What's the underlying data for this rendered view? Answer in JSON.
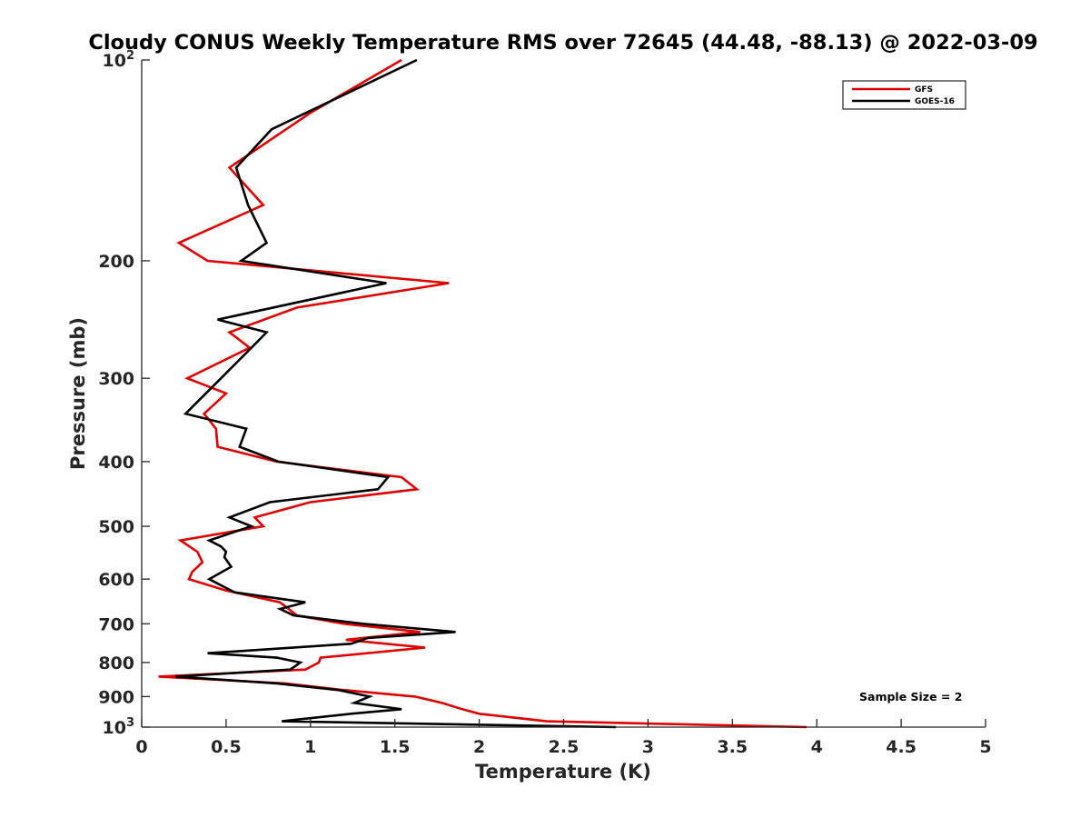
{
  "chart_data": {
    "type": "line",
    "title": "Cloudy CONUS Weekly Temperature RMS over 72645 (44.48, -88.13) @ 2022-03-09",
    "xlabel": "Temperature (K)",
    "ylabel": "Pressure (mb)",
    "xlim": [
      0,
      5
    ],
    "ylim": [
      100,
      1000
    ],
    "y_scale": "log",
    "y_reversed": true,
    "grid": false,
    "legend_position": "top-right",
    "x_ticks": [
      0,
      0.5,
      1,
      1.5,
      2,
      2.5,
      3,
      3.5,
      4,
      4.5,
      5
    ],
    "x_tick_labels": [
      "0",
      "0.5",
      "1",
      "1.5",
      "2",
      "2.5",
      "3",
      "3.5",
      "4",
      "4.5",
      "5"
    ],
    "y_ticks": [
      100,
      200,
      300,
      400,
      500,
      600,
      700,
      800,
      900,
      1000
    ],
    "y_tick_labels": [
      {
        "base": "10",
        "exp": "2"
      },
      {
        "base": "200",
        "exp": ""
      },
      {
        "base": "300",
        "exp": ""
      },
      {
        "base": "400",
        "exp": ""
      },
      {
        "base": "500",
        "exp": ""
      },
      {
        "base": "600",
        "exp": ""
      },
      {
        "base": "700",
        "exp": ""
      },
      {
        "base": "800",
        "exp": ""
      },
      {
        "base": "900",
        "exp": ""
      },
      {
        "base": "10",
        "exp": "3"
      }
    ],
    "annotation": "Sample Size = 2",
    "series": [
      {
        "name": "GFS",
        "color": "#e00000",
        "points": [
          [
            1.54,
            100
          ],
          [
            1.0,
            120
          ],
          [
            0.52,
            145
          ],
          [
            0.72,
            165
          ],
          [
            0.22,
            188
          ],
          [
            0.39,
            200
          ],
          [
            1.82,
            216
          ],
          [
            0.92,
            235
          ],
          [
            0.52,
            256
          ],
          [
            0.64,
            270
          ],
          [
            0.27,
            300
          ],
          [
            0.5,
            316
          ],
          [
            0.37,
            339
          ],
          [
            0.44,
            357
          ],
          [
            0.45,
            380
          ],
          [
            0.8,
            400
          ],
          [
            1.54,
            422
          ],
          [
            1.63,
            440
          ],
          [
            1.0,
            460
          ],
          [
            0.67,
            485
          ],
          [
            0.72,
            500
          ],
          [
            0.23,
            525
          ],
          [
            0.33,
            546
          ],
          [
            0.36,
            566
          ],
          [
            0.3,
            585
          ],
          [
            0.28,
            600
          ],
          [
            0.5,
            624
          ],
          [
            0.82,
            650
          ],
          [
            0.92,
            680
          ],
          [
            1.2,
            700
          ],
          [
            1.65,
            720
          ],
          [
            1.21,
            740
          ],
          [
            1.68,
            760
          ],
          [
            1.06,
            787
          ],
          [
            1.05,
            800
          ],
          [
            0.97,
            820
          ],
          [
            0.1,
            840
          ],
          [
            0.85,
            860
          ],
          [
            1.2,
            880
          ],
          [
            1.62,
            900
          ],
          [
            1.78,
            920
          ],
          [
            1.9,
            940
          ],
          [
            2.0,
            955
          ],
          [
            2.4,
            980
          ],
          [
            3.94,
            1000
          ]
        ]
      },
      {
        "name": "GOES-16",
        "color": "#000000",
        "points": [
          [
            1.63,
            100
          ],
          [
            0.77,
            127
          ],
          [
            0.56,
            145
          ],
          [
            0.63,
            165
          ],
          [
            0.74,
            188
          ],
          [
            0.59,
            200
          ],
          [
            1.45,
            216
          ],
          [
            0.45,
            245
          ],
          [
            0.74,
            256
          ],
          [
            0.65,
            270
          ],
          [
            0.47,
            300
          ],
          [
            0.26,
            339
          ],
          [
            0.62,
            357
          ],
          [
            0.58,
            380
          ],
          [
            0.81,
            400
          ],
          [
            1.46,
            422
          ],
          [
            1.4,
            440
          ],
          [
            0.76,
            460
          ],
          [
            0.52,
            485
          ],
          [
            0.65,
            500
          ],
          [
            0.4,
            525
          ],
          [
            0.47,
            536
          ],
          [
            0.5,
            546
          ],
          [
            0.49,
            556
          ],
          [
            0.53,
            575
          ],
          [
            0.4,
            600
          ],
          [
            0.55,
            628
          ],
          [
            0.97,
            650
          ],
          [
            0.82,
            665
          ],
          [
            0.9,
            680
          ],
          [
            1.31,
            700
          ],
          [
            1.86,
            720
          ],
          [
            1.34,
            735
          ],
          [
            1.24,
            750
          ],
          [
            0.39,
            775
          ],
          [
            0.8,
            787
          ],
          [
            0.94,
            800
          ],
          [
            0.88,
            820
          ],
          [
            0.2,
            840
          ],
          [
            0.8,
            860
          ],
          [
            1.17,
            880
          ],
          [
            1.35,
            900
          ],
          [
            1.26,
            920
          ],
          [
            1.54,
            940
          ],
          [
            1.24,
            955
          ],
          [
            0.83,
            980
          ],
          [
            2.81,
            1000
          ]
        ]
      }
    ]
  }
}
